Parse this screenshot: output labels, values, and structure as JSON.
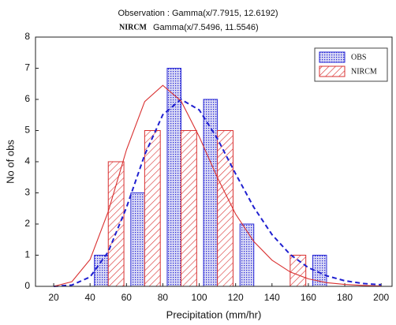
{
  "chart_data": {
    "type": "histogram",
    "title": "Observation : Gamma(x/7.7915, 12.6192)",
    "subtitle_label": "NIRCM",
    "subtitle": "Gamma(x/7.5496, 11.5546)",
    "xlabel": "Precipitation (mm/hr)",
    "ylabel": "No of obs",
    "bins": [
      40,
      60,
      80,
      100,
      120,
      140,
      160,
      180
    ],
    "series": [
      {
        "name": "OBS",
        "color": "#2b2bd6",
        "values": [
          1,
          3,
          7,
          6,
          2,
          0,
          1
        ]
      },
      {
        "name": "NIRCM",
        "color": "#d93030",
        "values": [
          4,
          5,
          5,
          5,
          0,
          1,
          0
        ]
      }
    ],
    "curves": [
      {
        "color": "#1f1fd0",
        "style": "dashed",
        "x": [
          20,
          30,
          40,
          50,
          60,
          70,
          80,
          90,
          100,
          110,
          120,
          130,
          140,
          150,
          160,
          170,
          180,
          190,
          200
        ],
        "values": [
          0,
          0.04,
          0.3,
          1.11,
          2.53,
          4.22,
          5.51,
          6.0,
          5.66,
          4.74,
          3.61,
          2.54,
          1.66,
          1.02,
          0.6,
          0.34,
          0.18,
          0.09,
          0.05
        ]
      },
      {
        "color": "#d93030",
        "style": "solid",
        "x": [
          20,
          30,
          40,
          50,
          60,
          70,
          80,
          90,
          100,
          110,
          120,
          130,
          140,
          150,
          160,
          170,
          180,
          190,
          200
        ],
        "values": [
          0,
          0.15,
          0.86,
          2.4,
          4.38,
          5.93,
          6.45,
          5.95,
          4.8,
          3.49,
          2.32,
          1.44,
          0.84,
          0.46,
          0.24,
          0.12,
          0.06,
          0.03,
          0.01
        ]
      }
    ],
    "xlim": [
      10,
      206
    ],
    "ylim": [
      0,
      8
    ],
    "xticks": [
      20,
      40,
      60,
      80,
      100,
      120,
      140,
      160,
      180,
      200
    ],
    "yticks": [
      0,
      1,
      2,
      3,
      4,
      5,
      6,
      7,
      8
    ],
    "legend": "upper right"
  }
}
